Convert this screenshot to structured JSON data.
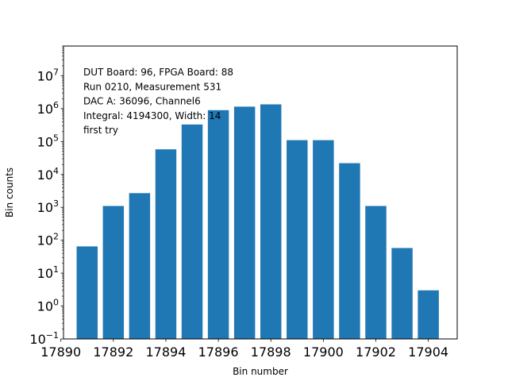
{
  "chart_data": {
    "type": "bar",
    "x": [
      17891,
      17892,
      17893,
      17894,
      17895,
      17896,
      17897,
      17898,
      17899,
      17900,
      17901,
      17902,
      17903,
      17904
    ],
    "values": [
      65,
      1100,
      2700,
      58000,
      330000,
      900000,
      1150000,
      1350000,
      110000,
      110000,
      22000,
      1100,
      58,
      3
    ],
    "xlabel": "Bin number",
    "ylabel": "Bin counts",
    "xlim": [
      17890.1,
      17905.1
    ],
    "ylim": [
      0.1,
      80000000
    ],
    "yscale": "log",
    "bar_color": "#1f77b4",
    "grid": false,
    "legend": "none",
    "x_ticks": [
      17890,
      17892,
      17894,
      17896,
      17898,
      17900,
      17902,
      17904
    ],
    "x_tick_labels": [
      "17890",
      "17892",
      "17894",
      "17896",
      "17898",
      "17900",
      "17902",
      "17904"
    ],
    "y_ticks": [
      {
        "value": 0.1,
        "base": "10",
        "exp": "−1"
      },
      {
        "value": 1,
        "base": "10",
        "exp": "0"
      },
      {
        "value": 10,
        "base": "10",
        "exp": "1"
      },
      {
        "value": 100,
        "base": "10",
        "exp": "2"
      },
      {
        "value": 1000,
        "base": "10",
        "exp": "3"
      },
      {
        "value": 10000,
        "base": "10",
        "exp": "4"
      },
      {
        "value": 100000,
        "base": "10",
        "exp": "5"
      },
      {
        "value": 1000000,
        "base": "10",
        "exp": "6"
      },
      {
        "value": 10000000,
        "base": "10",
        "exp": "7"
      }
    ],
    "annotation_lines": [
      "DUT Board: 96, FPGA Board: 88",
      "Run 0210, Measurement 531",
      "DAC A: 36096, Channel6",
      "Integral: 4194300, Width: 14",
      "first try"
    ]
  }
}
